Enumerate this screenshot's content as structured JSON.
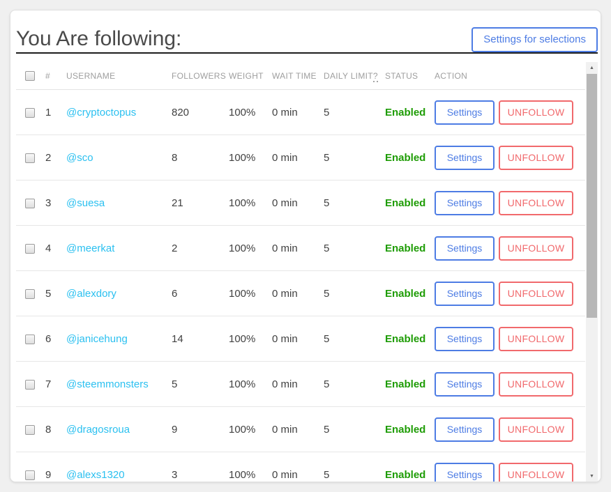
{
  "page": {
    "title": "You Are following:",
    "settings_button": "Settings for selections"
  },
  "table": {
    "headers": {
      "index": "#",
      "username": "USERNAME",
      "followers": "FOLLOWERS",
      "weight": "WEIGHT",
      "wait_time": "WAIT TIME",
      "daily_limit": "DAILY LIMIT",
      "daily_limit_hint": "?",
      "status": "STATUS",
      "action": "ACTION"
    },
    "action_buttons": {
      "settings": "Settings",
      "unfollow": "UNFOLLOW"
    },
    "rows": [
      {
        "index": "1",
        "username": "@cryptoctopus",
        "followers": "820",
        "weight": "100%",
        "wait_time": "0 min",
        "daily_limit": "5",
        "status": "Enabled"
      },
      {
        "index": "2",
        "username": "@sco",
        "followers": "8",
        "weight": "100%",
        "wait_time": "0 min",
        "daily_limit": "5",
        "status": "Enabled"
      },
      {
        "index": "3",
        "username": "@suesa",
        "followers": "21",
        "weight": "100%",
        "wait_time": "0 min",
        "daily_limit": "5",
        "status": "Enabled"
      },
      {
        "index": "4",
        "username": "@meerkat",
        "followers": "2",
        "weight": "100%",
        "wait_time": "0 min",
        "daily_limit": "5",
        "status": "Enabled"
      },
      {
        "index": "5",
        "username": "@alexdory",
        "followers": "6",
        "weight": "100%",
        "wait_time": "0 min",
        "daily_limit": "5",
        "status": "Enabled"
      },
      {
        "index": "6",
        "username": "@janicehung",
        "followers": "14",
        "weight": "100%",
        "wait_time": "0 min",
        "daily_limit": "5",
        "status": "Enabled"
      },
      {
        "index": "7",
        "username": "@steemmonsters",
        "followers": "5",
        "weight": "100%",
        "wait_time": "0 min",
        "daily_limit": "5",
        "status": "Enabled"
      },
      {
        "index": "8",
        "username": "@dragosroua",
        "followers": "9",
        "weight": "100%",
        "wait_time": "0 min",
        "daily_limit": "5",
        "status": "Enabled"
      },
      {
        "index": "9",
        "username": "@alexs1320",
        "followers": "3",
        "weight": "100%",
        "wait_time": "0 min",
        "daily_limit": "5",
        "status": "Enabled"
      }
    ]
  },
  "icons": {
    "scroll_up": "▲",
    "scroll_down": "▼"
  },
  "colors": {
    "link_cyan": "#2bc0f0",
    "status_green": "#1e9c05",
    "primary_blue": "#4d7ce4",
    "danger_red": "#f1696c",
    "header_gray": "#9e9e9e"
  }
}
